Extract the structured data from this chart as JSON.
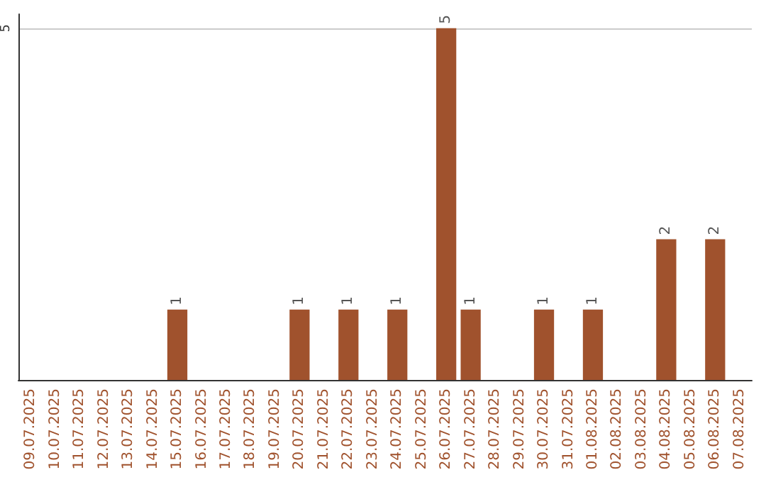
{
  "chart_data": {
    "type": "bar",
    "categories": [
      "09.07.2025",
      "10.07.2025",
      "11.07.2025",
      "12.07.2025",
      "13.07.2025",
      "14.07.2025",
      "15.07.2025",
      "16.07.2025",
      "17.07.2025",
      "18.07.2025",
      "19.07.2025",
      "20.07.2025",
      "21.07.2025",
      "22.07.2025",
      "23.07.2025",
      "24.07.2025",
      "25.07.2025",
      "26.07.2025",
      "27.07.2025",
      "28.07.2025",
      "29.07.2025",
      "30.07.2025",
      "31.07.2025",
      "01.08.2025",
      "02.08.2025",
      "03.08.2025",
      "04.08.2025",
      "05.08.2025",
      "06.08.2025",
      "07.08.2025"
    ],
    "values": [
      0,
      0,
      0,
      0,
      0,
      0,
      1,
      0,
      0,
      0,
      0,
      1,
      0,
      1,
      0,
      1,
      0,
      5,
      1,
      0,
      0,
      1,
      0,
      1,
      0,
      0,
      2,
      0,
      2,
      0
    ],
    "value_labels": [
      null,
      null,
      null,
      null,
      null,
      null,
      "1",
      null,
      null,
      null,
      null,
      "1",
      null,
      "1",
      null,
      "1",
      null,
      "5",
      "1",
      null,
      null,
      "1",
      null,
      "1",
      null,
      null,
      "2",
      null,
      "2",
      null
    ],
    "color": "#a0522d",
    "ylim": [
      0,
      5.2
    ],
    "yticks": [
      5
    ],
    "grid": "y"
  }
}
